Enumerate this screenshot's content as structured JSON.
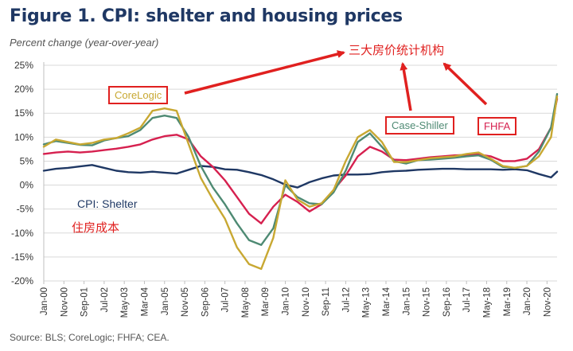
{
  "header": {
    "title": "Figure 1. CPI: shelter and housing prices",
    "subtitle": "Percent change (year-over-year)",
    "source": "Source: BLS; CoreLogic; FHFA; CEA."
  },
  "annotations": {
    "corelogic": "CoreLogic",
    "case_shiller": "Case-Shiller",
    "fhfa": "FHFA",
    "agencies_cn": "三大房价统计机构",
    "cpi_shelter": "CPI: Shelter",
    "housing_cost_cn": "住房成本"
  },
  "colors": {
    "corelogic": "#c8a832",
    "case_shiller": "#4e8a73",
    "fhfa": "#d6204f",
    "cpi_shelter": "#1f3864",
    "annotation_red": "#e0201f"
  },
  "chart_data": {
    "type": "line",
    "title": "Figure 1. CPI: shelter and housing prices",
    "ylabel": "Percent change (year-over-year)",
    "xlabel": "",
    "ylim": [
      -20,
      25
    ],
    "yticks": [
      25,
      20,
      15,
      10,
      5,
      0,
      -5,
      -10,
      -15,
      -20
    ],
    "ytick_labels": [
      "25%",
      "20%",
      "15%",
      "10%",
      "5%",
      "0%",
      "-5%",
      "-10%",
      "-15%",
      "-20%"
    ],
    "xlim": [
      2000.0,
      2021.25
    ],
    "xtick_labels": [
      "Jan-00",
      "Nov-00",
      "Sep-01",
      "Jul-02",
      "May-03",
      "Mar-04",
      "Jan-05",
      "Nov-05",
      "Sep-06",
      "Jul-07",
      "May-08",
      "Mar-09",
      "Jan-10",
      "Nov-10",
      "Sep-11",
      "Jul-12",
      "May-13",
      "Mar-14",
      "Jan-15",
      "Nov-15",
      "Sep-16",
      "Jul-17",
      "May-18",
      "Mar-19",
      "Jan-20",
      "Nov-20"
    ],
    "grid": true,
    "series": [
      {
        "name": "CPI: Shelter",
        "x": [
          2000.0,
          2000.5,
          2001.0,
          2001.5,
          2002.0,
          2002.5,
          2003.0,
          2003.5,
          2004.0,
          2004.5,
          2005.0,
          2005.5,
          2006.0,
          2006.5,
          2007.0,
          2007.5,
          2008.0,
          2008.5,
          2009.0,
          2009.5,
          2010.0,
          2010.5,
          2011.0,
          2011.5,
          2012.0,
          2012.5,
          2013.0,
          2013.5,
          2014.0,
          2014.5,
          2015.0,
          2015.5,
          2016.0,
          2016.5,
          2017.0,
          2017.5,
          2018.0,
          2018.5,
          2019.0,
          2019.5,
          2020.0,
          2020.5,
          2021.0,
          2021.25
        ],
        "values": [
          3.0,
          3.4,
          3.6,
          3.9,
          4.2,
          3.6,
          3.0,
          2.7,
          2.6,
          2.8,
          2.6,
          2.4,
          3.2,
          4.0,
          3.8,
          3.3,
          3.2,
          2.7,
          2.1,
          1.2,
          0.1,
          -0.5,
          0.6,
          1.4,
          2.0,
          2.2,
          2.2,
          2.3,
          2.7,
          2.9,
          3.0,
          3.2,
          3.3,
          3.4,
          3.4,
          3.3,
          3.3,
          3.3,
          3.2,
          3.3,
          3.1,
          2.3,
          1.6,
          2.8
        ]
      },
      {
        "name": "FHFA",
        "x": [
          2000.0,
          2000.5,
          2001.0,
          2001.5,
          2002.0,
          2002.5,
          2003.0,
          2003.5,
          2004.0,
          2004.5,
          2005.0,
          2005.5,
          2006.0,
          2006.5,
          2007.0,
          2007.5,
          2008.0,
          2008.5,
          2009.0,
          2009.5,
          2010.0,
          2010.5,
          2011.0,
          2011.5,
          2012.0,
          2012.5,
          2013.0,
          2013.5,
          2014.0,
          2014.5,
          2015.0,
          2015.5,
          2016.0,
          2016.5,
          2017.0,
          2017.5,
          2018.0,
          2018.5,
          2019.0,
          2019.5,
          2020.0,
          2020.5,
          2021.0,
          2021.25
        ],
        "values": [
          6.5,
          6.8,
          7.0,
          6.8,
          7.0,
          7.3,
          7.6,
          8.0,
          8.5,
          9.5,
          10.2,
          10.5,
          9.5,
          6.0,
          3.8,
          1.0,
          -2.5,
          -6.0,
          -8.0,
          -4.5,
          -2.0,
          -3.5,
          -5.5,
          -4.0,
          -1.0,
          2.0,
          6.0,
          8.0,
          7.0,
          5.3,
          5.2,
          5.5,
          5.8,
          6.0,
          6.2,
          6.3,
          6.4,
          6.0,
          5.0,
          5.0,
          5.5,
          7.5,
          12.0,
          18.0
        ]
      },
      {
        "name": "Case-Shiller",
        "x": [
          2000.0,
          2000.5,
          2001.0,
          2001.5,
          2002.0,
          2002.5,
          2003.0,
          2003.5,
          2004.0,
          2004.5,
          2005.0,
          2005.5,
          2006.0,
          2006.5,
          2007.0,
          2007.5,
          2008.0,
          2008.5,
          2009.0,
          2009.5,
          2010.0,
          2010.5,
          2011.0,
          2011.5,
          2012.0,
          2012.5,
          2013.0,
          2013.5,
          2014.0,
          2014.5,
          2015.0,
          2015.5,
          2016.0,
          2016.5,
          2017.0,
          2017.5,
          2018.0,
          2018.5,
          2019.0,
          2019.5,
          2020.0,
          2020.5,
          2021.0,
          2021.25
        ],
        "values": [
          8.5,
          9.2,
          8.8,
          8.4,
          8.3,
          9.3,
          9.8,
          10.2,
          11.5,
          14.0,
          14.5,
          14.0,
          10.0,
          4.0,
          -0.5,
          -4.0,
          -8.0,
          -11.5,
          -12.5,
          -9.0,
          0.0,
          -2.5,
          -3.8,
          -4.0,
          -1.5,
          3.0,
          9.0,
          10.8,
          8.0,
          5.0,
          4.5,
          5.2,
          5.3,
          5.5,
          5.7,
          6.0,
          6.2,
          5.3,
          3.8,
          3.6,
          4.0,
          7.0,
          12.0,
          19.0
        ]
      },
      {
        "name": "CoreLogic",
        "x": [
          2000.0,
          2000.5,
          2001.0,
          2001.5,
          2002.0,
          2002.5,
          2003.0,
          2003.5,
          2004.0,
          2004.5,
          2005.0,
          2005.5,
          2006.0,
          2006.5,
          2007.0,
          2007.5,
          2008.0,
          2008.5,
          2009.0,
          2009.5,
          2010.0,
          2010.5,
          2011.0,
          2011.5,
          2012.0,
          2012.5,
          2013.0,
          2013.5,
          2014.0,
          2014.5,
          2015.0,
          2015.5,
          2016.0,
          2016.5,
          2017.0,
          2017.5,
          2018.0,
          2018.5,
          2019.0,
          2019.5,
          2020.0,
          2020.5,
          2021.0,
          2021.25
        ],
        "values": [
          8.0,
          9.5,
          9.0,
          8.5,
          8.8,
          9.5,
          9.8,
          10.8,
          12.0,
          15.5,
          16.0,
          15.5,
          8.5,
          1.5,
          -3.0,
          -7.0,
          -13.0,
          -16.5,
          -17.5,
          -11.0,
          1.0,
          -3.0,
          -4.5,
          -3.8,
          -1.0,
          5.0,
          10.0,
          11.5,
          9.0,
          4.8,
          4.8,
          5.2,
          5.6,
          5.8,
          6.0,
          6.5,
          6.8,
          5.5,
          4.0,
          3.6,
          4.0,
          6.0,
          10.0,
          18.5
        ]
      }
    ]
  }
}
